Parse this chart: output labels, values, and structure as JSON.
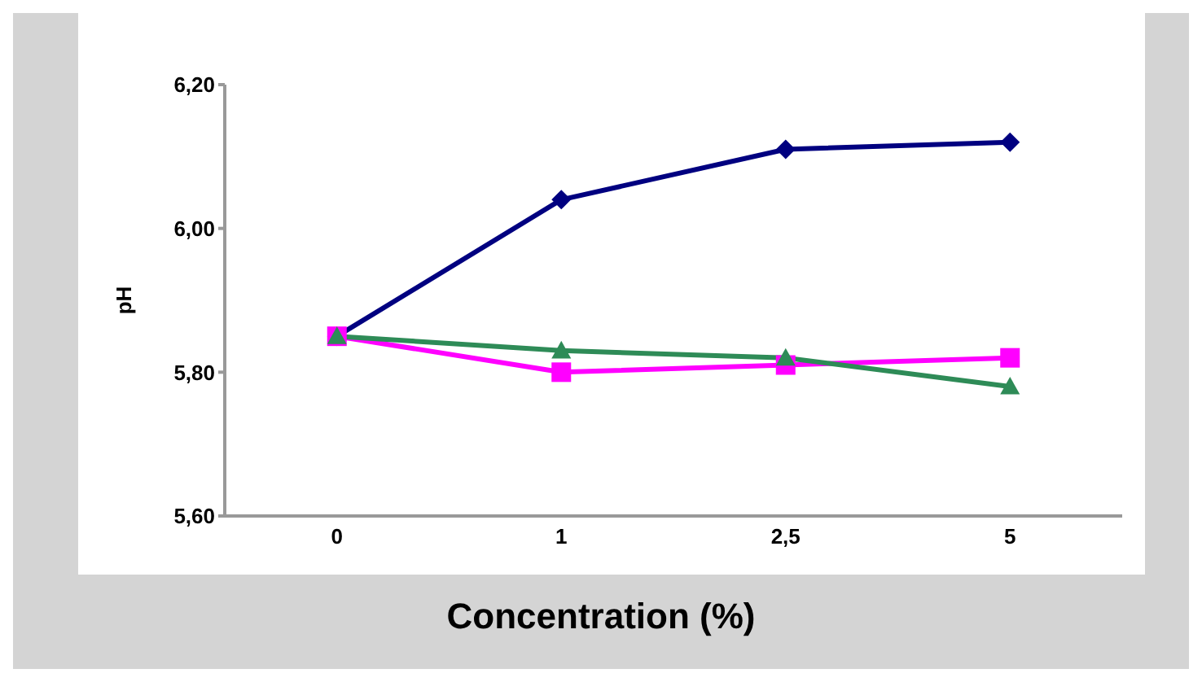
{
  "chart_data": {
    "type": "line",
    "xlabel": "Concentration (%)",
    "ylabel": "pH",
    "categories": [
      "0",
      "1",
      "2,5",
      "5"
    ],
    "series": [
      {
        "color": "#000080",
        "marker": "diamond",
        "values": [
          5.85,
          6.04,
          6.11,
          6.12
        ]
      },
      {
        "color": "#ff00ff",
        "marker": "square",
        "values": [
          5.85,
          5.8,
          5.81,
          5.82
        ]
      },
      {
        "color": "#2e8b57",
        "marker": "triangle",
        "values": [
          5.85,
          5.83,
          5.82,
          5.78
        ]
      }
    ],
    "ylim": [
      5.6,
      6.2
    ],
    "yticks": [
      {
        "value": 5.6,
        "label": "5,60"
      },
      {
        "value": 5.8,
        "label": "5,80"
      },
      {
        "value": 6.0,
        "label": "6,00"
      },
      {
        "value": 6.2,
        "label": "6,20"
      }
    ],
    "grid": false,
    "legend": false,
    "line_style": "solid"
  }
}
